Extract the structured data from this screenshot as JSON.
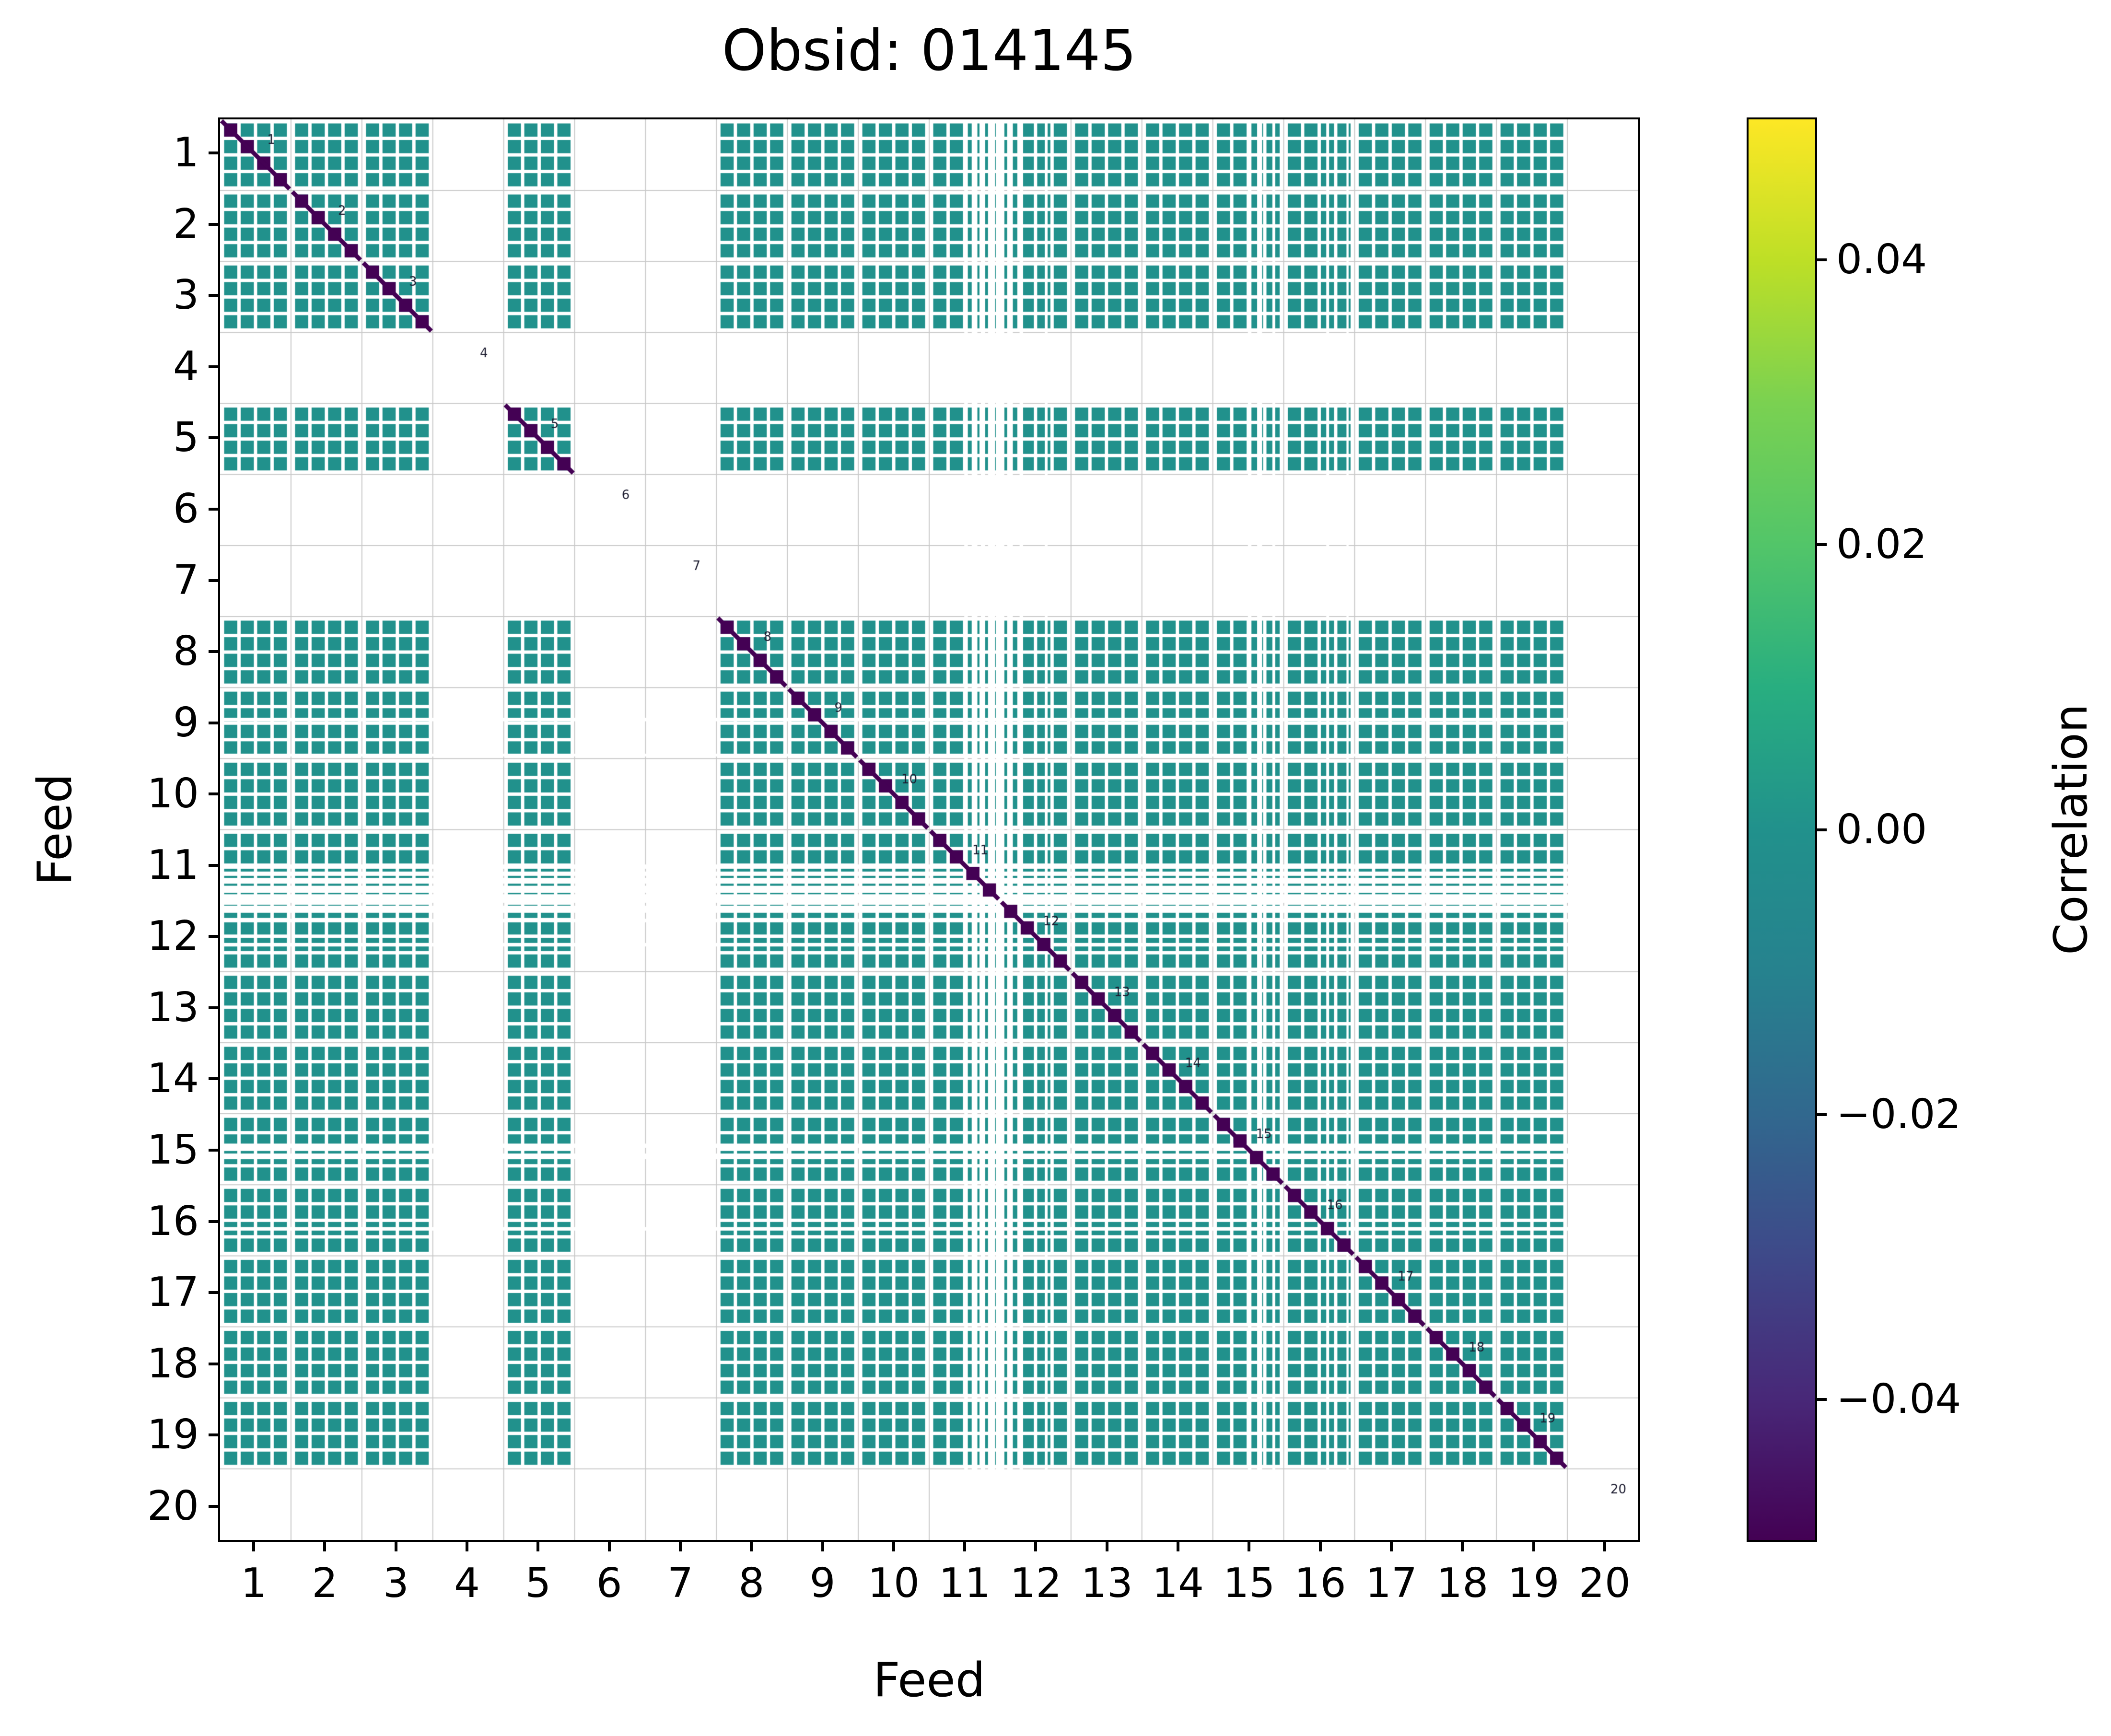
{
  "chart_data": {
    "type": "heatmap",
    "title": "Obsid: 014145",
    "xlabel": "Feed",
    "ylabel": "Feed",
    "feeds": 20,
    "bands_per_feed": 4,
    "tick_labels": [
      "1",
      "2",
      "3",
      "4",
      "5",
      "6",
      "7",
      "8",
      "9",
      "10",
      "11",
      "12",
      "13",
      "14",
      "15",
      "16",
      "17",
      "18",
      "19",
      "20"
    ],
    "diag_labels": [
      "1",
      "2",
      "3",
      "4",
      "5",
      "6",
      "7",
      "8",
      "9",
      "10",
      "11",
      "12",
      "13",
      "14",
      "15",
      "16",
      "17",
      "18",
      "19",
      "20"
    ],
    "feeds_present": [
      1,
      2,
      3,
      5,
      8,
      9,
      10,
      11,
      12,
      13,
      14,
      15,
      16,
      17,
      18,
      19
    ],
    "feeds_missing": [
      4,
      6,
      7,
      20
    ],
    "offdiagonal_correlation": 0.0,
    "diagonal_value": -0.05,
    "colormap": "viridis",
    "vmin": -0.05,
    "vmax": 0.05,
    "colors": {
      "cell": "#21918c",
      "diagonal": "#440154",
      "grid": "#c9c9c9",
      "axes": "#000000",
      "diag_label_text": "#1c1c30"
    },
    "viridis_stops": [
      "#440154",
      "#482878",
      "#3e4989",
      "#31688e",
      "#26828e",
      "#21918c",
      "#28ae80",
      "#52c569",
      "#7ad151",
      "#bddf26",
      "#fde725"
    ],
    "colorbar": {
      "label": "Correlation",
      "ticks": [
        {
          "value": 0.04,
          "label": "0.04"
        },
        {
          "value": 0.02,
          "label": "0.02"
        },
        {
          "value": 0.0,
          "label": "0.00"
        },
        {
          "value": -0.02,
          "label": "−0.02"
        },
        {
          "value": -0.04,
          "label": "−0.04"
        }
      ]
    },
    "flagged_stripes": {
      "horizontal": [
        {
          "pos": 8.45,
          "w": 0.05
        },
        {
          "pos": 8.95,
          "w": 0.04
        },
        {
          "pos": 10.52,
          "w": 0.06
        },
        {
          "pos": 10.62,
          "w": 0.06
        },
        {
          "pos": 10.72,
          "w": 0.08
        },
        {
          "pos": 10.84,
          "w": 0.1
        },
        {
          "pos": 10.97,
          "w": 0.12
        },
        {
          "pos": 11.12,
          "w": 0.1
        },
        {
          "pos": 11.28,
          "w": 0.05
        },
        {
          "pos": 11.62,
          "w": 0.05
        },
        {
          "pos": 14.45,
          "w": 0.06
        },
        {
          "pos": 14.6,
          "w": 0.08
        },
        {
          "pos": 15.62,
          "w": 0.05
        }
      ],
      "vertical": [
        {
          "pos": 10.52,
          "w": 0.05
        },
        {
          "pos": 10.64,
          "w": 0.08
        },
        {
          "pos": 10.76,
          "w": 0.06
        },
        {
          "pos": 10.88,
          "w": 0.1
        },
        {
          "pos": 11.0,
          "w": 0.12
        },
        {
          "pos": 11.14,
          "w": 0.08
        },
        {
          "pos": 11.3,
          "w": 0.05
        },
        {
          "pos": 11.65,
          "w": 0.04
        },
        {
          "pos": 14.52,
          "w": 0.05
        },
        {
          "pos": 14.66,
          "w": 0.07
        },
        {
          "pos": 14.86,
          "w": 0.04
        },
        {
          "pos": 15.62,
          "w": 0.04
        },
        {
          "pos": 15.9,
          "w": 0.03
        }
      ]
    }
  }
}
